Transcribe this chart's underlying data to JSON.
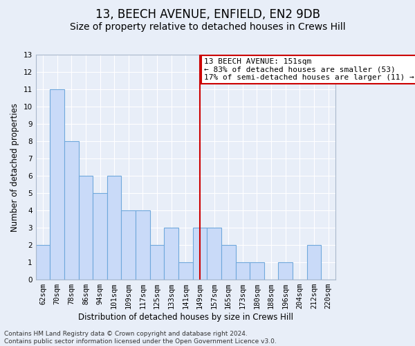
{
  "title1": "13, BEECH AVENUE, ENFIELD, EN2 9DB",
  "title2": "Size of property relative to detached houses in Crews Hill",
  "xlabel": "Distribution of detached houses by size in Crews Hill",
  "ylabel": "Number of detached properties",
  "categories": [
    "62sqm",
    "70sqm",
    "78sqm",
    "86sqm",
    "94sqm",
    "101sqm",
    "109sqm",
    "117sqm",
    "125sqm",
    "133sqm",
    "141sqm",
    "149sqm",
    "157sqm",
    "165sqm",
    "173sqm",
    "180sqm",
    "188sqm",
    "196sqm",
    "204sqm",
    "212sqm",
    "220sqm"
  ],
  "values": [
    2,
    11,
    8,
    6,
    5,
    6,
    4,
    4,
    2,
    3,
    1,
    3,
    3,
    2,
    1,
    1,
    0,
    1,
    0,
    2,
    0
  ],
  "bar_color": "#c9daf8",
  "bar_edge_color": "#6fa8dc",
  "highlight_index": 11,
  "highlight_line_color": "#cc0000",
  "annotation_text": "13 BEECH AVENUE: 151sqm\n← 83% of detached houses are smaller (53)\n17% of semi-detached houses are larger (11) →",
  "annotation_box_color": "#cc0000",
  "ylim": [
    0,
    13
  ],
  "yticks": [
    0,
    1,
    2,
    3,
    4,
    5,
    6,
    7,
    8,
    9,
    10,
    11,
    12,
    13
  ],
  "footnote": "Contains HM Land Registry data © Crown copyright and database right 2024.\nContains public sector information licensed under the Open Government Licence v3.0.",
  "background_color": "#e8eef8",
  "grid_color": "#ffffff",
  "title1_fontsize": 12,
  "title2_fontsize": 10,
  "axis_label_fontsize": 8.5,
  "tick_fontsize": 7.5,
  "annotation_fontsize": 8,
  "footnote_fontsize": 6.5
}
